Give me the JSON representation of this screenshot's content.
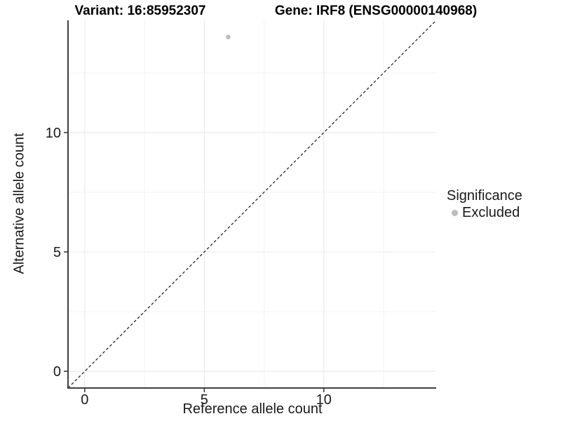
{
  "titles": {
    "variant": "Variant: 16:85952307",
    "gene": "Gene: IRF8 (ENSG00000140968)"
  },
  "legend": {
    "title": "Significance",
    "items": [
      {
        "label": "Excluded",
        "color": "#bcbcbc"
      }
    ]
  },
  "chart_data": {
    "type": "scatter",
    "title_left": "Variant: 16:85952307",
    "title_right": "Gene: IRF8 (ENSG00000140968)",
    "xlabel": "Reference allele count",
    "ylabel": "Alternative allele count",
    "xlim": [
      -0.7,
      14.7
    ],
    "ylim": [
      -0.7,
      14.7
    ],
    "xticks": [
      0,
      5,
      10
    ],
    "yticks": [
      0,
      5,
      10
    ],
    "x_minor_ticks": [
      2.5,
      7.5,
      12.5
    ],
    "y_minor_ticks": [
      2.5,
      7.5,
      12.5
    ],
    "grid": "major+minor",
    "legend_position": "right",
    "identity_line": {
      "equation": "y = x",
      "style": "dashed",
      "color": "#1a1a1a"
    },
    "series": [
      {
        "name": "Excluded",
        "color": "#bcbcbc",
        "points": [
          {
            "x": 6,
            "y": 14
          }
        ]
      }
    ],
    "colors": {
      "axis_line": "#404040",
      "tick_mark": "#333333",
      "major_grid": "#e8e8e8",
      "minor_grid": "#f3f3f3",
      "background": "#ffffff"
    }
  }
}
